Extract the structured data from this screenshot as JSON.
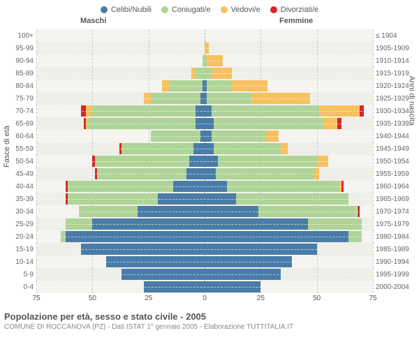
{
  "legend": [
    {
      "label": "Celibi/Nubili",
      "color": "#4a7ca8"
    },
    {
      "label": "Coniugati/e",
      "color": "#aed597"
    },
    {
      "label": "Vedovi/e",
      "color": "#f7c160"
    },
    {
      "label": "Divorziati/e",
      "color": "#d62728"
    }
  ],
  "headers": {
    "male": "Maschi",
    "female": "Femmine"
  },
  "axis_titles": {
    "left": "Fasce di età",
    "right": "Anni di nascita"
  },
  "x_axis": {
    "max": 75,
    "ticks": [
      75,
      50,
      25,
      0,
      25,
      50,
      75
    ]
  },
  "footer": {
    "title": "Popolazione per età, sesso e stato civile - 2005",
    "sub": "COMUNE DI ROCCANOVA (PZ) - Dati ISTAT 1° gennaio 2005 - Elaborazione TUTTITALIA.IT"
  },
  "colors": {
    "single": "#4a7ca8",
    "married": "#aed597",
    "widowed": "#f7c160",
    "divorced": "#d62728",
    "plot_bg_a": "#f5f4f0",
    "plot_bg_b": "#efeee8"
  },
  "rows": [
    {
      "age": "100+",
      "birth": "≤ 1904",
      "m": [
        0,
        0,
        0,
        0
      ],
      "f": [
        0,
        0,
        0,
        0
      ]
    },
    {
      "age": "95-99",
      "birth": "1905-1909",
      "m": [
        0,
        0,
        0,
        0
      ],
      "f": [
        0,
        0,
        2,
        0
      ]
    },
    {
      "age": "90-94",
      "birth": "1910-1914",
      "m": [
        0,
        1,
        0,
        0
      ],
      "f": [
        0,
        1,
        7,
        0
      ]
    },
    {
      "age": "85-89",
      "birth": "1915-1919",
      "m": [
        0,
        4,
        2,
        0
      ],
      "f": [
        0,
        3,
        9,
        0
      ]
    },
    {
      "age": "80-84",
      "birth": "1920-1924",
      "m": [
        1,
        15,
        3,
        0
      ],
      "f": [
        1,
        11,
        16,
        0
      ]
    },
    {
      "age": "75-79",
      "birth": "1925-1929",
      "m": [
        2,
        22,
        3,
        0
      ],
      "f": [
        1,
        20,
        26,
        0
      ]
    },
    {
      "age": "70-74",
      "birth": "1930-1934",
      "m": [
        4,
        46,
        3,
        2
      ],
      "f": [
        3,
        48,
        18,
        2
      ]
    },
    {
      "age": "65-69",
      "birth": "1935-1939",
      "m": [
        4,
        48,
        1,
        1
      ],
      "f": [
        4,
        49,
        6,
        2
      ]
    },
    {
      "age": "60-64",
      "birth": "1940-1944",
      "m": [
        2,
        22,
        0,
        0
      ],
      "f": [
        3,
        24,
        6,
        0
      ]
    },
    {
      "age": "55-59",
      "birth": "1945-1949",
      "m": [
        5,
        32,
        0,
        1
      ],
      "f": [
        4,
        30,
        3,
        0
      ]
    },
    {
      "age": "50-54",
      "birth": "1950-1954",
      "m": [
        7,
        42,
        0,
        1
      ],
      "f": [
        6,
        44,
        5,
        0
      ]
    },
    {
      "age": "45-49",
      "birth": "1955-1959",
      "m": [
        8,
        40,
        0,
        1
      ],
      "f": [
        5,
        44,
        2,
        0
      ]
    },
    {
      "age": "40-44",
      "birth": "1960-1964",
      "m": [
        14,
        47,
        0,
        1
      ],
      "f": [
        10,
        50,
        1,
        1
      ]
    },
    {
      "age": "35-39",
      "birth": "1965-1969",
      "m": [
        21,
        40,
        0,
        1
      ],
      "f": [
        14,
        50,
        0,
        0
      ]
    },
    {
      "age": "30-34",
      "birth": "1970-1974",
      "m": [
        30,
        26,
        0,
        0
      ],
      "f": [
        24,
        44,
        0,
        1
      ]
    },
    {
      "age": "25-29",
      "birth": "1975-1979",
      "m": [
        50,
        12,
        0,
        0
      ],
      "f": [
        46,
        24,
        0,
        0
      ]
    },
    {
      "age": "20-24",
      "birth": "1980-1984",
      "m": [
        62,
        2,
        0,
        0
      ],
      "f": [
        64,
        6,
        0,
        0
      ]
    },
    {
      "age": "15-19",
      "birth": "1985-1989",
      "m": [
        55,
        0,
        0,
        0
      ],
      "f": [
        50,
        0,
        0,
        0
      ]
    },
    {
      "age": "10-14",
      "birth": "1990-1994",
      "m": [
        44,
        0,
        0,
        0
      ],
      "f": [
        39,
        0,
        0,
        0
      ]
    },
    {
      "age": "5-9",
      "birth": "1995-1999",
      "m": [
        37,
        0,
        0,
        0
      ],
      "f": [
        34,
        0,
        0,
        0
      ]
    },
    {
      "age": "0-4",
      "birth": "2000-2004",
      "m": [
        27,
        0,
        0,
        0
      ],
      "f": [
        25,
        0,
        0,
        0
      ]
    }
  ]
}
